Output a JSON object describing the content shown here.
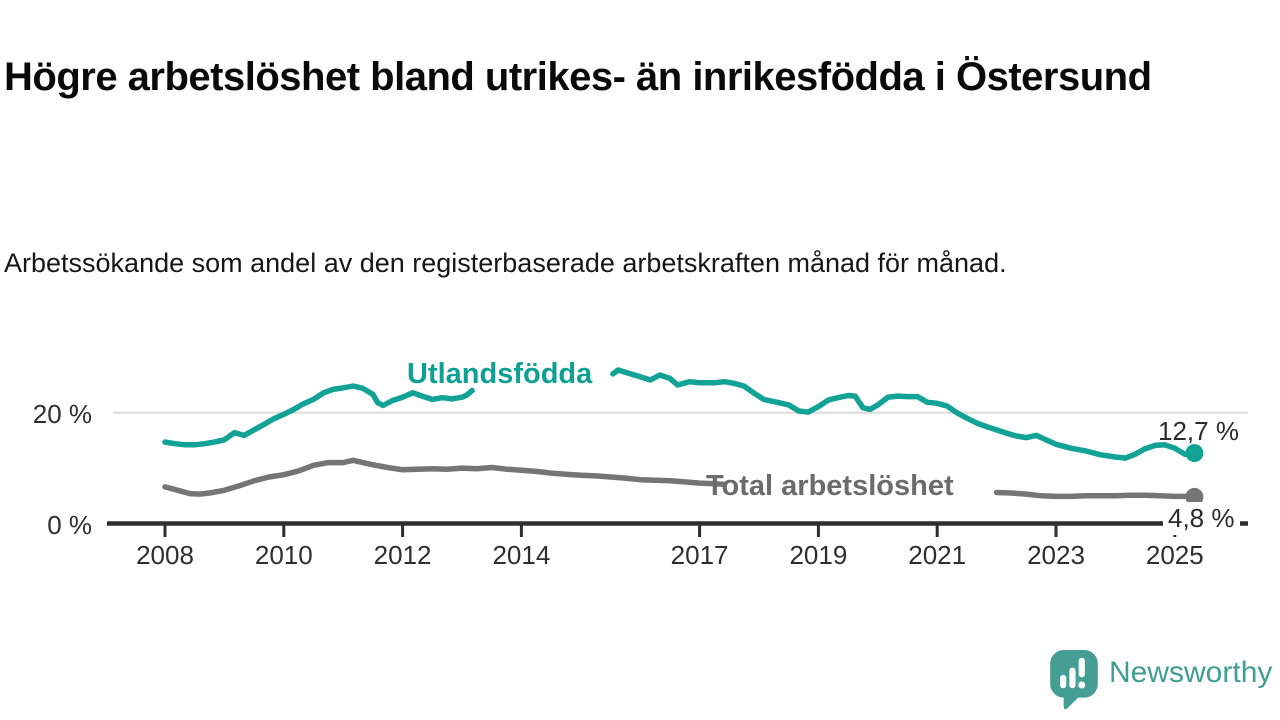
{
  "title": "Högre arbetslöshet bland utrikes- än inrikesfödda i Östersund",
  "subtitle": "Arbetssökande som andel av den registerbaserade arbetskraften månad för månad.",
  "chart_data": {
    "type": "line",
    "title": "Högre arbetslöshet bland utrikes- än inrikesfödda i Östersund",
    "xlabel": "",
    "ylabel": "Arbetssökande som andel av den registerbaserade arbetskraften (%)",
    "x_unit": "decimal year, monthly data",
    "xlim": [
      2007.0,
      2026.3
    ],
    "ylim": [
      0,
      29
    ],
    "grid": "single horizontal gridline at 20 %",
    "grid_values": [
      20
    ],
    "y_tick_labels": [
      {
        "value": 20,
        "label": "20 %"
      },
      {
        "value": 0,
        "label": "0 %"
      }
    ],
    "x_ticks": [
      {
        "value": 2008,
        "label": "2008"
      },
      {
        "value": 2010,
        "label": "2010"
      },
      {
        "value": 2012,
        "label": "2012"
      },
      {
        "value": 2014,
        "label": "2014"
      },
      {
        "value": 2017,
        "label": "2017"
      },
      {
        "value": 2019,
        "label": "2019"
      },
      {
        "value": 2021,
        "label": "2021"
      },
      {
        "value": 2023,
        "label": "2023"
      },
      {
        "value": 2025,
        "label": "2025"
      }
    ],
    "legend_position": "inline labels on lines; line gaps where labels sit",
    "series": [
      {
        "name": "Utlandsfödda",
        "color": "#12a296",
        "end_label": "12,7 %",
        "end_value": 12.7,
        "segments": [
          [
            [
              2008.0,
              14.7
            ],
            [
              2008.17,
              14.4
            ],
            [
              2008.33,
              14.2
            ],
            [
              2008.5,
              14.2
            ],
            [
              2008.67,
              14.4
            ],
            [
              2008.83,
              14.7
            ],
            [
              2009.0,
              15.1
            ],
            [
              2009.17,
              16.4
            ],
            [
              2009.33,
              15.9
            ],
            [
              2009.5,
              16.9
            ],
            [
              2009.67,
              17.9
            ],
            [
              2009.83,
              18.9
            ],
            [
              2010.0,
              19.7
            ],
            [
              2010.17,
              20.6
            ],
            [
              2010.33,
              21.6
            ],
            [
              2010.5,
              22.4
            ],
            [
              2010.67,
              23.6
            ],
            [
              2010.83,
              24.2
            ],
            [
              2011.0,
              24.5
            ],
            [
              2011.17,
              24.8
            ],
            [
              2011.33,
              24.4
            ],
            [
              2011.5,
              23.3
            ],
            [
              2011.58,
              21.8
            ],
            [
              2011.67,
              21.3
            ],
            [
              2011.83,
              22.2
            ],
            [
              2012.0,
              22.8
            ],
            [
              2012.17,
              23.6
            ],
            [
              2012.33,
              23.0
            ],
            [
              2012.5,
              22.4
            ],
            [
              2012.67,
              22.7
            ],
            [
              2012.83,
              22.5
            ],
            [
              2013.0,
              22.8
            ],
            [
              2013.08,
              23.2
            ],
            [
              2013.17,
              24.0
            ]
          ],
          [
            [
              2015.54,
              27.0
            ],
            [
              2015.63,
              27.7
            ],
            [
              2015.75,
              27.3
            ],
            [
              2016.0,
              26.5
            ],
            [
              2016.17,
              25.9
            ],
            [
              2016.33,
              26.8
            ],
            [
              2016.5,
              26.2
            ],
            [
              2016.63,
              25.0
            ],
            [
              2016.83,
              25.6
            ],
            [
              2017.0,
              25.4
            ],
            [
              2017.25,
              25.4
            ],
            [
              2017.42,
              25.6
            ],
            [
              2017.58,
              25.3
            ],
            [
              2017.75,
              24.8
            ],
            [
              2017.92,
              23.5
            ],
            [
              2018.08,
              22.4
            ],
            [
              2018.25,
              22.0
            ],
            [
              2018.5,
              21.4
            ],
            [
              2018.67,
              20.3
            ],
            [
              2018.83,
              20.1
            ],
            [
              2019.0,
              21.1
            ],
            [
              2019.17,
              22.3
            ],
            [
              2019.33,
              22.7
            ],
            [
              2019.5,
              23.1
            ],
            [
              2019.62,
              23.0
            ],
            [
              2019.75,
              20.9
            ],
            [
              2019.87,
              20.6
            ],
            [
              2020.0,
              21.4
            ],
            [
              2020.17,
              22.8
            ],
            [
              2020.33,
              23.0
            ],
            [
              2020.5,
              22.9
            ],
            [
              2020.67,
              22.9
            ],
            [
              2020.83,
              21.9
            ],
            [
              2021.0,
              21.7
            ],
            [
              2021.17,
              21.2
            ],
            [
              2021.33,
              20.0
            ],
            [
              2021.5,
              19.0
            ],
            [
              2021.67,
              18.1
            ],
            [
              2021.83,
              17.5
            ],
            [
              2022.0,
              16.9
            ],
            [
              2022.17,
              16.3
            ],
            [
              2022.33,
              15.8
            ],
            [
              2022.5,
              15.5
            ],
            [
              2022.67,
              15.9
            ],
            [
              2022.83,
              15.1
            ],
            [
              2023.0,
              14.3
            ],
            [
              2023.25,
              13.6
            ],
            [
              2023.5,
              13.1
            ],
            [
              2023.75,
              12.4
            ],
            [
              2024.0,
              12.0
            ],
            [
              2024.17,
              11.8
            ],
            [
              2024.33,
              12.5
            ],
            [
              2024.5,
              13.5
            ],
            [
              2024.67,
              14.1
            ],
            [
              2024.83,
              14.2
            ],
            [
              2025.0,
              13.6
            ],
            [
              2025.17,
              12.5
            ],
            [
              2025.33,
              12.7
            ]
          ]
        ]
      },
      {
        "name": "Total arbetslöshet",
        "color": "#757575",
        "end_label": "4,8 %",
        "end_value": 4.8,
        "segments": [
          [
            [
              2008.0,
              6.6
            ],
            [
              2008.25,
              5.9
            ],
            [
              2008.42,
              5.4
            ],
            [
              2008.58,
              5.3
            ],
            [
              2008.75,
              5.5
            ],
            [
              2009.0,
              6.0
            ],
            [
              2009.25,
              6.8
            ],
            [
              2009.5,
              7.7
            ],
            [
              2009.75,
              8.4
            ],
            [
              2010.0,
              8.8
            ],
            [
              2010.25,
              9.5
            ],
            [
              2010.5,
              10.5
            ],
            [
              2010.75,
              11.0
            ],
            [
              2011.0,
              11.0
            ],
            [
              2011.17,
              11.4
            ],
            [
              2011.33,
              11.0
            ],
            [
              2011.5,
              10.6
            ],
            [
              2011.75,
              10.1
            ],
            [
              2012.0,
              9.7
            ],
            [
              2012.25,
              9.8
            ],
            [
              2012.5,
              9.9
            ],
            [
              2012.75,
              9.8
            ],
            [
              2013.0,
              10.0
            ],
            [
              2013.25,
              9.9
            ],
            [
              2013.5,
              10.1
            ],
            [
              2013.75,
              9.8
            ],
            [
              2014.0,
              9.6
            ],
            [
              2014.25,
              9.4
            ],
            [
              2014.5,
              9.1
            ],
            [
              2014.75,
              8.9
            ],
            [
              2015.0,
              8.7
            ],
            [
              2015.25,
              8.6
            ],
            [
              2015.5,
              8.4
            ],
            [
              2015.75,
              8.2
            ],
            [
              2016.0,
              7.9
            ],
            [
              2016.25,
              7.8
            ],
            [
              2016.5,
              7.7
            ],
            [
              2016.75,
              7.5
            ],
            [
              2017.0,
              7.3
            ],
            [
              2017.2,
              7.2
            ],
            [
              2017.4,
              7.1
            ]
          ],
          [
            [
              2022.0,
              5.6
            ],
            [
              2022.25,
              5.5
            ],
            [
              2022.5,
              5.3
            ],
            [
              2022.75,
              5.0
            ],
            [
              2023.0,
              4.9
            ],
            [
              2023.25,
              4.9
            ],
            [
              2023.5,
              5.0
            ],
            [
              2023.75,
              5.0
            ],
            [
              2024.0,
              5.0
            ],
            [
              2024.25,
              5.1
            ],
            [
              2024.5,
              5.1
            ],
            [
              2024.75,
              5.0
            ],
            [
              2025.0,
              4.9
            ],
            [
              2025.17,
              4.9
            ],
            [
              2025.33,
              4.8
            ]
          ]
        ]
      }
    ],
    "annotations": [
      {
        "text": "12,7 %",
        "series": "Utlandsfödda",
        "position": "end of line"
      },
      {
        "text": "4,8 %",
        "series": "Total arbetslöshet",
        "position": "end of line"
      }
    ]
  },
  "axis_colors": {
    "axis": "#2e2e2e",
    "gridline": "#dcdcdc",
    "tick_text": "#2e2e2e"
  },
  "branding": {
    "logo_text": "Newsworthy",
    "logo_color": "#3f9d93"
  }
}
